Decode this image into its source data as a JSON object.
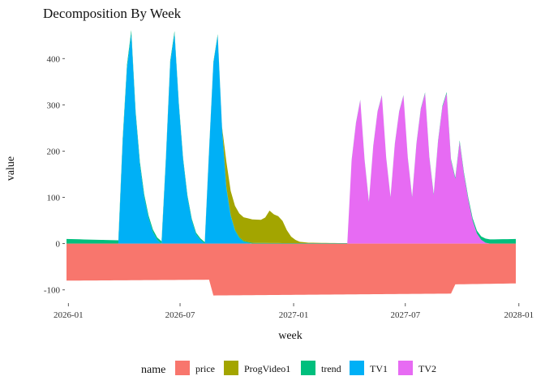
{
  "chart_data": {
    "type": "area",
    "title": "Decomposition By Week",
    "xlabel": "week",
    "ylabel": "value",
    "x_ticks": [
      "2026-01",
      "2026-07",
      "2027-01",
      "2027-07",
      "2028-01"
    ],
    "y_ticks": [
      -100,
      0,
      100,
      200,
      300,
      400
    ],
    "xlim": [
      "2025-12-29",
      "2027-12-27"
    ],
    "ylim": [
      -125,
      460
    ],
    "grid": false,
    "legend": {
      "title": "name",
      "position": "bottom"
    },
    "stacking": "positive values stack upward from 0, negative values downward",
    "series": [
      {
        "name": "price",
        "color": "#F8766D",
        "points": [
          [
            "2025-12-29",
            -80
          ],
          [
            "2026-08-17",
            -78
          ],
          [
            "2026-08-24",
            -112
          ],
          [
            "2027-09-13",
            -108
          ],
          [
            "2027-09-20",
            -88
          ],
          [
            "2027-12-27",
            -86
          ]
        ]
      },
      {
        "name": "ProgVideo1",
        "color": "#A3A500",
        "points": [
          [
            "2025-12-29",
            0
          ],
          [
            "2026-09-07",
            0
          ],
          [
            "2026-09-14",
            55
          ],
          [
            "2026-09-21",
            52
          ],
          [
            "2026-11-09",
            50
          ],
          [
            "2026-11-16",
            55
          ],
          [
            "2026-11-23",
            70
          ],
          [
            "2026-11-30",
            62
          ],
          [
            "2026-12-07",
            58
          ],
          [
            "2026-12-14",
            48
          ],
          [
            "2026-12-21",
            28
          ],
          [
            "2026-12-28",
            14
          ],
          [
            "2027-01-04",
            7
          ],
          [
            "2027-01-11",
            3
          ],
          [
            "2027-01-25",
            1
          ],
          [
            "2027-03-22",
            0
          ],
          [
            "2027-12-27",
            0
          ]
        ]
      },
      {
        "name": "trend",
        "color": "#00BF7D",
        "points": [
          [
            "2025-12-29",
            10
          ],
          [
            "2026-06-01",
            5
          ],
          [
            "2026-09-28",
            2
          ],
          [
            "2027-01-04",
            1
          ],
          [
            "2027-06-28",
            1
          ],
          [
            "2027-09-27",
            3
          ],
          [
            "2027-10-25",
            6
          ],
          [
            "2027-11-08",
            9
          ],
          [
            "2027-12-27",
            10
          ]
        ]
      },
      {
        "name": "TV1",
        "color": "#00B0F6",
        "points": [
          [
            "2025-12-29",
            0
          ],
          [
            "2026-03-23",
            0
          ],
          [
            "2026-03-30",
            220
          ],
          [
            "2026-04-06",
            380
          ],
          [
            "2026-04-13",
            455
          ],
          [
            "2026-04-20",
            280
          ],
          [
            "2026-04-27",
            170
          ],
          [
            "2026-05-04",
            100
          ],
          [
            "2026-05-11",
            55
          ],
          [
            "2026-05-18",
            25
          ],
          [
            "2026-05-25",
            8
          ],
          [
            "2026-06-01",
            0
          ],
          [
            "2026-06-08",
            180
          ],
          [
            "2026-06-15",
            390
          ],
          [
            "2026-06-22",
            455
          ],
          [
            "2026-06-29",
            300
          ],
          [
            "2026-07-06",
            180
          ],
          [
            "2026-07-13",
            100
          ],
          [
            "2026-07-20",
            50
          ],
          [
            "2026-07-27",
            20
          ],
          [
            "2026-08-03",
            8
          ],
          [
            "2026-08-10",
            0
          ],
          [
            "2026-08-17",
            200
          ],
          [
            "2026-08-24",
            390
          ],
          [
            "2026-08-31",
            450
          ],
          [
            "2026-09-07",
            250
          ],
          [
            "2026-09-14",
            120
          ],
          [
            "2026-09-21",
            60
          ],
          [
            "2026-09-28",
            28
          ],
          [
            "2026-10-05",
            12
          ],
          [
            "2026-10-12",
            4
          ],
          [
            "2026-10-26",
            0
          ],
          [
            "2027-12-27",
            0
          ]
        ]
      },
      {
        "name": "TV2",
        "color": "#E76BF3",
        "points": [
          [
            "2025-12-29",
            0
          ],
          [
            "2027-03-29",
            0
          ],
          [
            "2027-04-05",
            180
          ],
          [
            "2027-04-12",
            260
          ],
          [
            "2027-04-19",
            310
          ],
          [
            "2027-04-26",
            180
          ],
          [
            "2027-05-03",
            90
          ],
          [
            "2027-05-10",
            210
          ],
          [
            "2027-05-17",
            285
          ],
          [
            "2027-05-24",
            320
          ],
          [
            "2027-05-31",
            185
          ],
          [
            "2027-06-07",
            100
          ],
          [
            "2027-06-14",
            215
          ],
          [
            "2027-06-21",
            285
          ],
          [
            "2027-06-28",
            320
          ],
          [
            "2027-07-05",
            185
          ],
          [
            "2027-07-12",
            100
          ],
          [
            "2027-07-19",
            215
          ],
          [
            "2027-07-26",
            290
          ],
          [
            "2027-08-02",
            325
          ],
          [
            "2027-08-09",
            185
          ],
          [
            "2027-08-16",
            105
          ],
          [
            "2027-08-23",
            220
          ],
          [
            "2027-08-30",
            295
          ],
          [
            "2027-09-06",
            325
          ],
          [
            "2027-09-13",
            180
          ],
          [
            "2027-09-20",
            140
          ],
          [
            "2027-09-27",
            220
          ],
          [
            "2027-10-04",
            150
          ],
          [
            "2027-10-11",
            95
          ],
          [
            "2027-10-18",
            50
          ],
          [
            "2027-10-25",
            22
          ],
          [
            "2027-11-01",
            8
          ],
          [
            "2027-11-08",
            2
          ],
          [
            "2027-11-15",
            0
          ],
          [
            "2027-12-27",
            0
          ]
        ]
      }
    ]
  }
}
